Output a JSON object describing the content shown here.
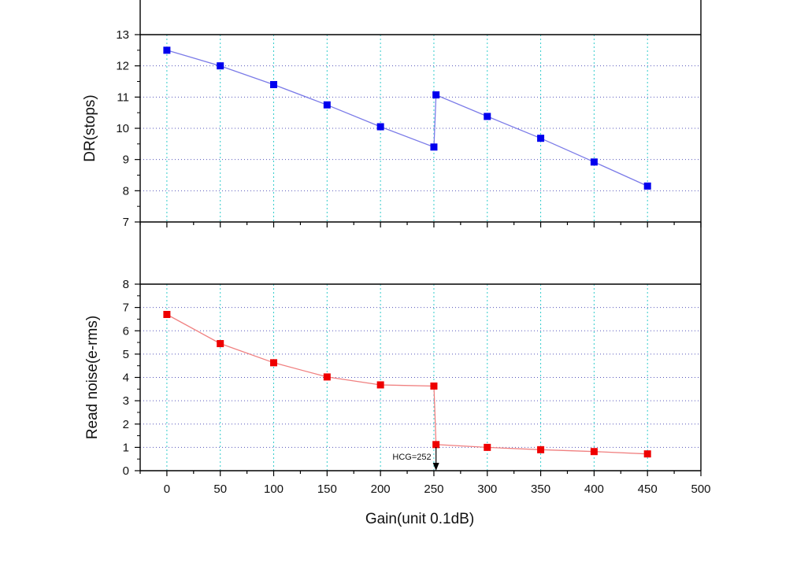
{
  "chart_data": [
    {
      "type": "line",
      "ylabel": "DR(stops)",
      "xlabel": "",
      "xlim": [
        -25,
        500
      ],
      "ylim": [
        7,
        13
      ],
      "yticks": [
        7,
        8,
        9,
        10,
        11,
        12,
        13
      ],
      "grid": true,
      "series": [
        {
          "color": "#0000ee",
          "line_color": "#7b7be8",
          "marker": "square",
          "x": [
            0,
            50,
            100,
            150,
            200,
            250,
            252,
            300,
            350,
            400,
            450
          ],
          "y": [
            12.5,
            12.0,
            11.4,
            10.75,
            10.05,
            9.4,
            11.07,
            10.38,
            9.68,
            8.92,
            8.15
          ]
        }
      ]
    },
    {
      "type": "line",
      "ylabel": "Read noise(e-rms)",
      "xlabel": "Gain(unit 0.1dB)",
      "xlim": [
        -25,
        500
      ],
      "ylim": [
        0,
        8
      ],
      "xticks": [
        0,
        50,
        100,
        150,
        200,
        250,
        300,
        350,
        400,
        450,
        500
      ],
      "yticks": [
        0,
        1,
        2,
        3,
        4,
        5,
        6,
        7,
        8
      ],
      "grid": true,
      "series": [
        {
          "color": "#ee0000",
          "line_color": "#f08080",
          "marker": "square",
          "x": [
            0,
            50,
            100,
            150,
            200,
            250,
            252,
            300,
            350,
            400,
            450
          ],
          "y": [
            6.7,
            5.45,
            4.63,
            4.02,
            3.68,
            3.63,
            1.12,
            1.0,
            0.9,
            0.82,
            0.72
          ]
        }
      ],
      "annotations": [
        {
          "text": "HCG=252",
          "x": 252,
          "y": 0,
          "arrow": "down"
        }
      ]
    }
  ],
  "colors": {
    "grid_vertical": "#33cccc",
    "grid_horizontal": "#5555bb",
    "axis": "#000000"
  }
}
